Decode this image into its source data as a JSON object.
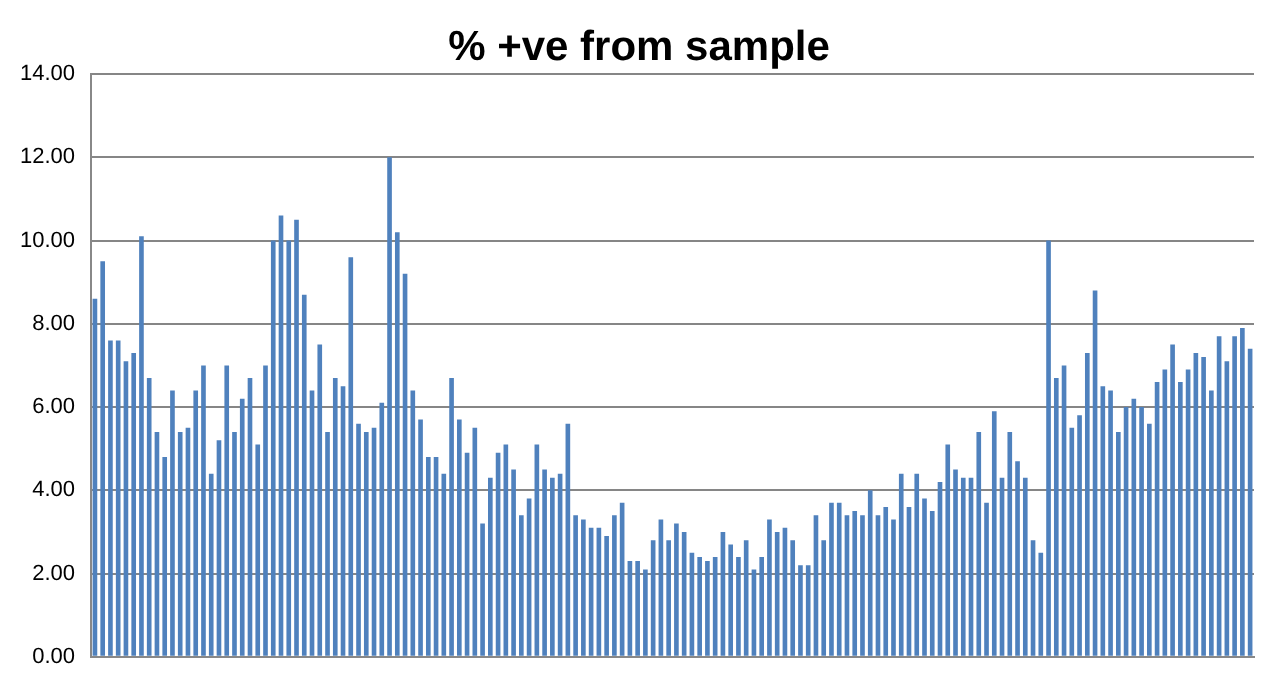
{
  "chart_data": {
    "type": "bar",
    "title": "% +ve from sample",
    "color": "#4f81bd",
    "grid": "y",
    "tick_labels": "y",
    "categories": [
      null,
      null,
      null,
      null,
      null,
      null,
      null,
      null,
      null,
      null,
      null,
      null,
      null,
      null,
      null,
      null,
      null,
      null,
      null,
      null,
      null,
      null,
      null,
      null,
      null,
      null,
      null,
      null,
      null,
      null,
      null,
      null,
      null,
      null,
      null,
      null,
      null,
      null,
      null,
      null,
      null,
      null,
      null,
      null,
      null,
      null,
      null,
      null,
      null,
      null,
      null,
      null,
      null,
      null,
      null,
      null,
      null,
      null,
      null,
      null,
      null,
      null,
      null,
      null,
      null,
      null,
      null,
      null,
      null,
      null,
      null,
      null,
      null,
      null,
      null,
      null,
      null,
      null,
      null,
      null,
      null,
      null,
      null,
      null,
      null,
      null,
      null,
      null,
      null,
      null,
      null,
      null,
      null,
      null,
      null,
      null,
      null,
      null,
      null,
      null,
      null,
      null,
      null,
      null,
      null,
      null,
      null,
      null,
      null,
      null,
      null,
      null,
      null,
      null,
      null,
      null,
      null,
      null,
      null,
      null,
      null,
      null,
      null,
      null,
      null,
      null,
      null,
      null,
      null,
      null,
      null,
      null,
      null,
      null,
      null,
      null,
      null,
      null,
      null,
      null,
      null,
      null,
      null,
      null,
      null,
      null,
      null,
      null,
      null,
      null
    ],
    "values": [
      8.6,
      9.5,
      7.6,
      7.6,
      7.1,
      7.3,
      10.1,
      6.7,
      5.4,
      4.8,
      6.4,
      5.4,
      5.5,
      6.4,
      7.0,
      4.4,
      5.2,
      7.0,
      5.4,
      6.2,
      6.7,
      5.1,
      7.0,
      10.0,
      10.6,
      10.0,
      10.5,
      8.7,
      6.4,
      7.5,
      5.4,
      6.7,
      6.5,
      9.6,
      5.6,
      5.4,
      5.5,
      6.1,
      12.0,
      10.2,
      9.2,
      6.4,
      5.7,
      4.8,
      4.8,
      4.4,
      6.7,
      5.7,
      4.9,
      5.5,
      3.2,
      4.3,
      4.9,
      5.1,
      4.5,
      3.4,
      3.8,
      5.1,
      4.5,
      4.3,
      4.4,
      5.6,
      3.4,
      3.3,
      3.1,
      3.1,
      2.9,
      3.4,
      3.7,
      2.3,
      2.3,
      2.1,
      2.8,
      3.3,
      2.8,
      3.2,
      3.0,
      2.5,
      2.4,
      2.3,
      2.4,
      3.0,
      2.7,
      2.4,
      2.8,
      2.1,
      2.4,
      3.3,
      3.0,
      3.1,
      2.8,
      2.2,
      2.2,
      3.4,
      2.8,
      3.7,
      3.7,
      3.4,
      3.5,
      3.4,
      4.0,
      3.4,
      3.6,
      3.3,
      4.4,
      3.6,
      4.4,
      3.8,
      3.5,
      4.2,
      5.1,
      4.5,
      4.3,
      4.3,
      5.4,
      3.7,
      5.9,
      4.3,
      5.4,
      4.7,
      4.3,
      2.8,
      2.5,
      10.0,
      6.7,
      7.0,
      5.5,
      5.8,
      7.3,
      8.8,
      6.5,
      6.4,
      5.4,
      6.0,
      6.2,
      6.0,
      5.6,
      6.6,
      6.9,
      7.5,
      6.6,
      6.9,
      7.3,
      7.2,
      6.4,
      7.7,
      7.1,
      7.7,
      7.9,
      7.4
    ],
    "ylim": [
      0,
      14
    ],
    "yticks": [
      {
        "value": 0,
        "label": "0.00"
      },
      {
        "value": 2,
        "label": "2.00"
      },
      {
        "value": 4,
        "label": "4.00"
      },
      {
        "value": 6,
        "label": "6.00"
      },
      {
        "value": 8,
        "label": "8.00"
      },
      {
        "value": 10,
        "label": "10.00"
      },
      {
        "value": 12,
        "label": "12.00"
      },
      {
        "value": 14,
        "label": "14.00"
      }
    ]
  }
}
